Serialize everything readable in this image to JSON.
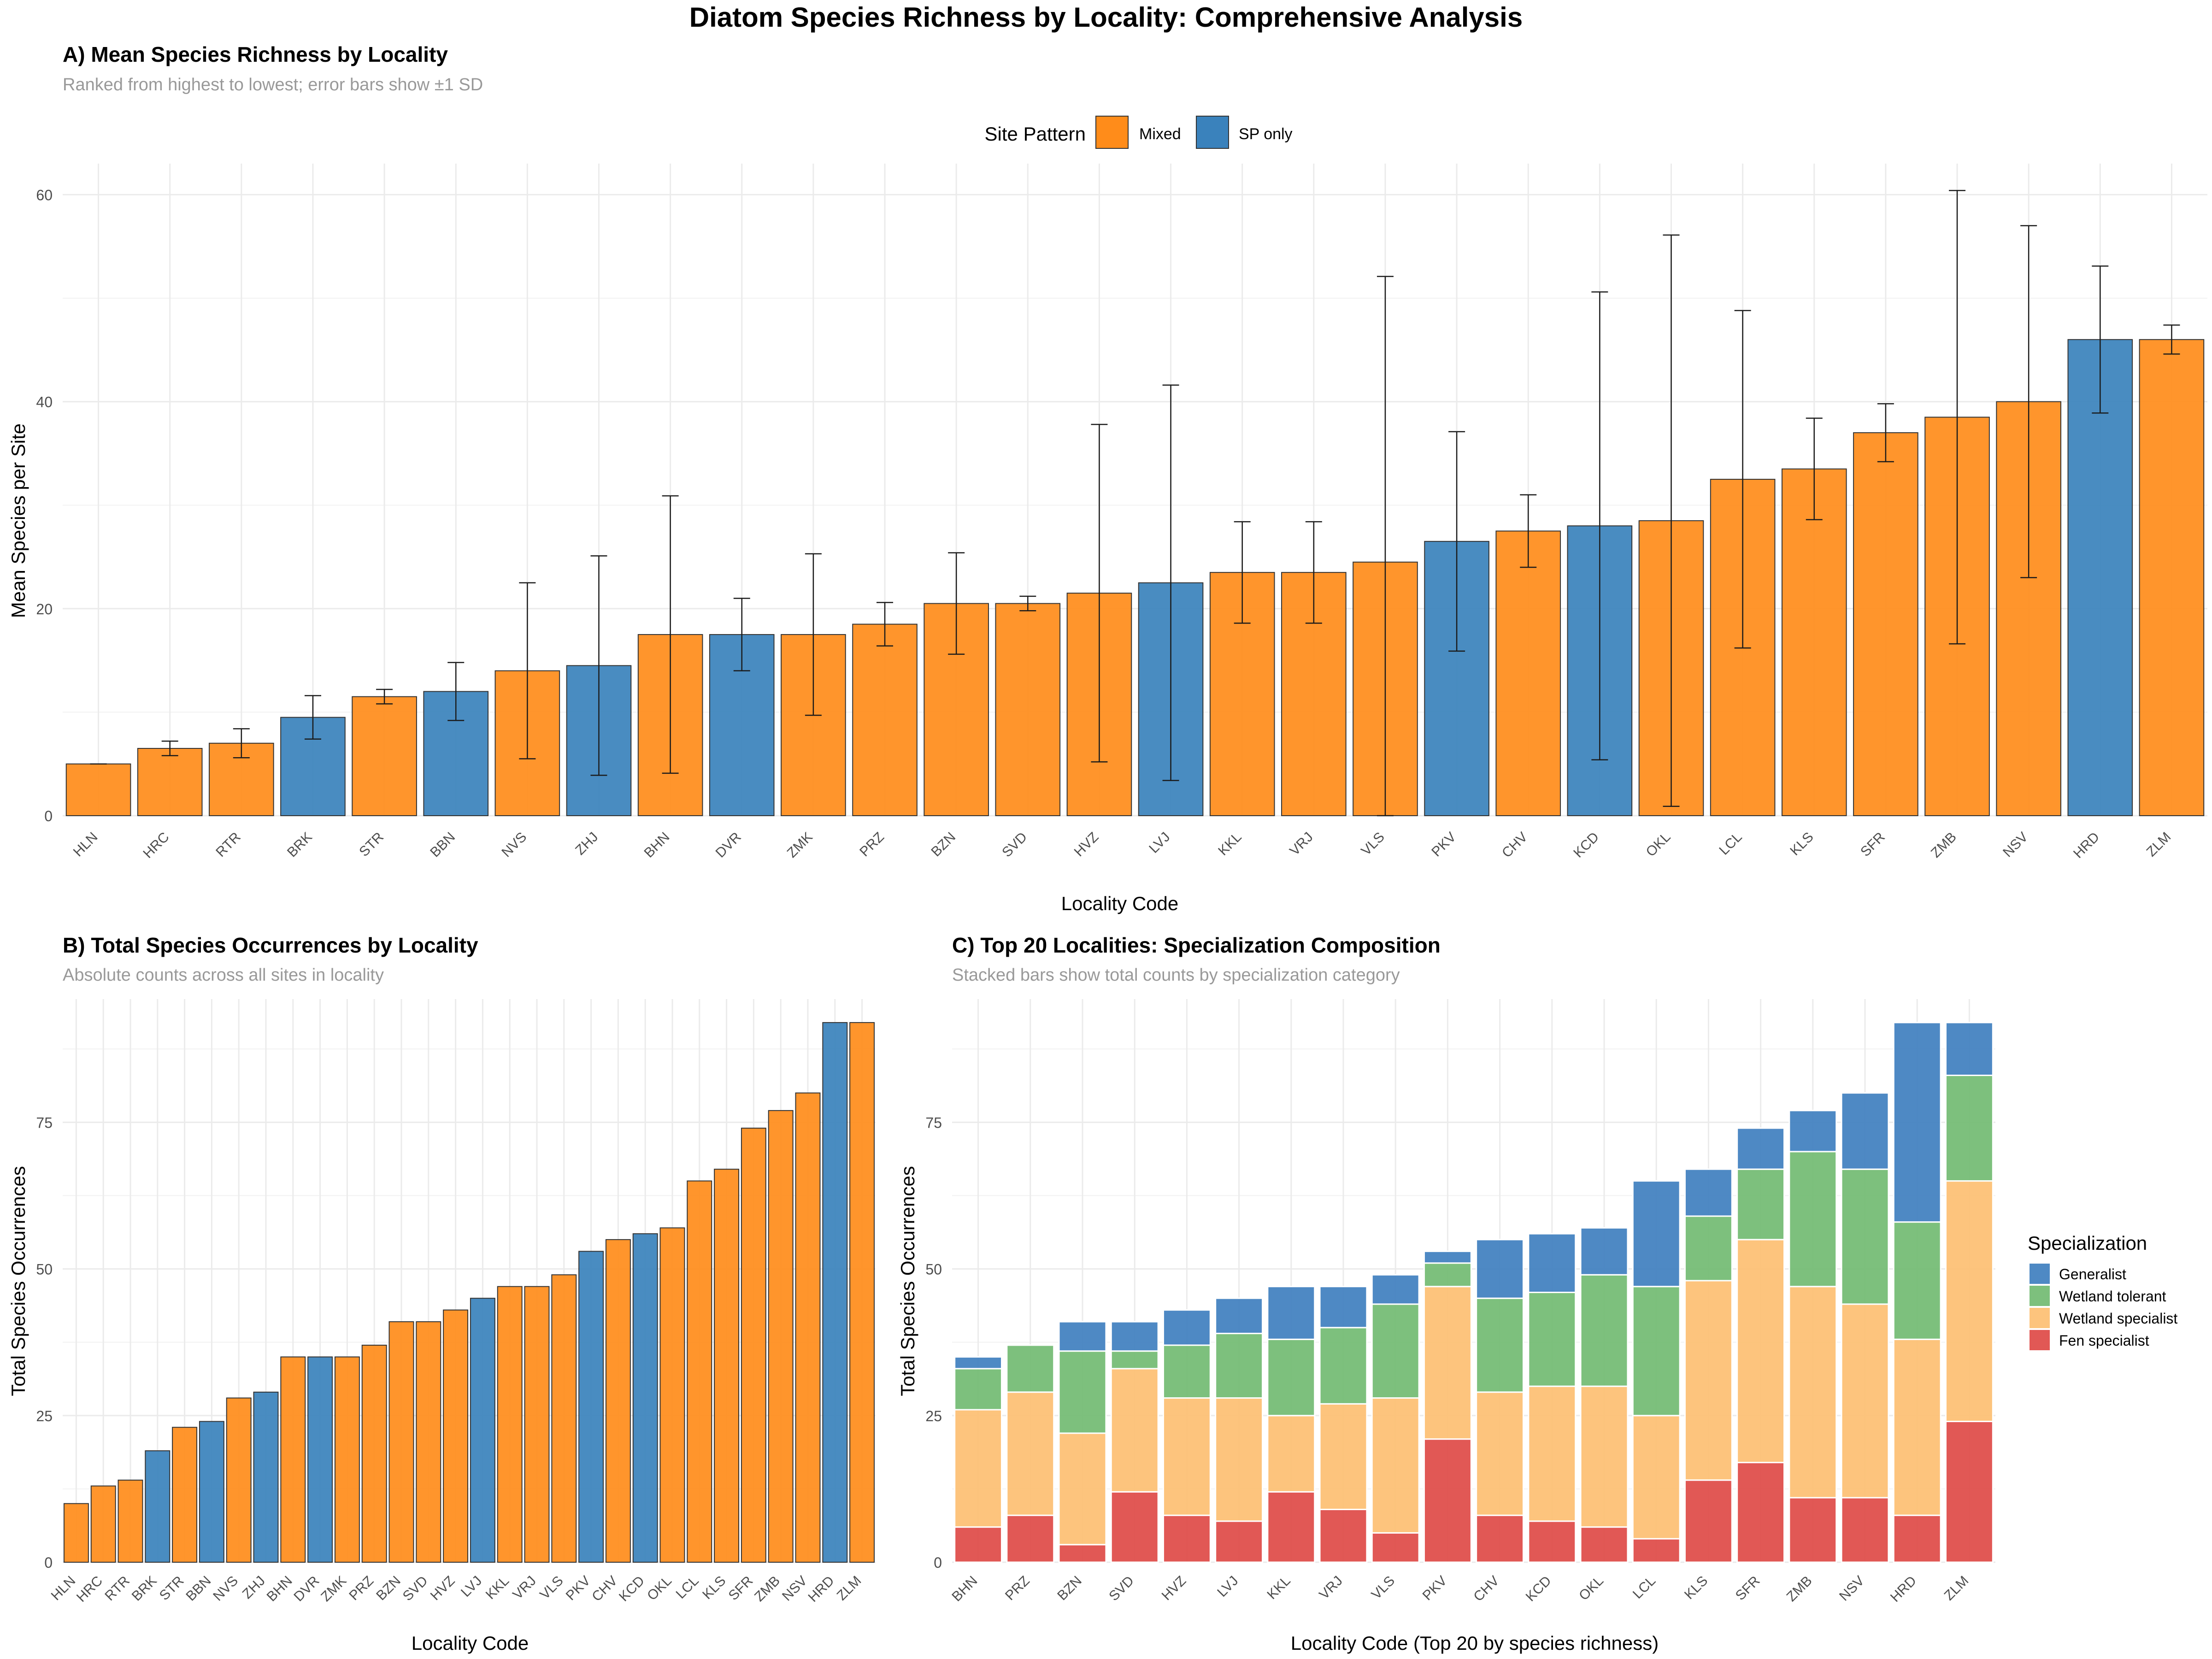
{
  "title": "Diatom Species Richness by Locality: Comprehensive Analysis",
  "colors": {
    "mixed": "#FF8C1A",
    "sp_only": "#3A82BC",
    "generalist": "#3F7FBF",
    "wetland_tolerant": "#72BB72",
    "wetland_specialist": "#FDBF72",
    "fen_specialist": "#DE4A47",
    "grid": "#EBEBEB"
  },
  "chart_data": [
    {
      "id": "A",
      "type": "bar",
      "title": "A) Mean Species Richness by Locality",
      "subtitle": "Ranked from highest to lowest; error bars show ±1 SD",
      "xlabel": "Locality Code",
      "ylabel": "Mean Species per Site",
      "ylim": [
        0,
        63
      ],
      "yticks": [
        0,
        20,
        40,
        60
      ],
      "grid": true,
      "legend": {
        "title": "Site Pattern",
        "position": "top",
        "entries": [
          {
            "key": "mixed",
            "label": "Mixed"
          },
          {
            "key": "sp_only",
            "label": "SP only"
          }
        ]
      },
      "categories": [
        "HLN",
        "HRC",
        "RTR",
        "BRK",
        "STR",
        "BBN",
        "NVS",
        "ZHJ",
        "BHN",
        "DVR",
        "ZMK",
        "PRZ",
        "BZN",
        "SVD",
        "HVZ",
        "LVJ",
        "KKL",
        "VRJ",
        "VLS",
        "PKV",
        "CHV",
        "KCD",
        "OKL",
        "LCL",
        "KLS",
        "SFR",
        "ZMB",
        "NSV",
        "HRD",
        "ZLM"
      ],
      "values": [
        5,
        6.5,
        7,
        9.5,
        11.5,
        12,
        14,
        14.5,
        17.5,
        17.5,
        17.5,
        18.5,
        20.5,
        20.5,
        21.5,
        22.5,
        23.5,
        23.5,
        24.5,
        26.5,
        27.5,
        28,
        28.5,
        32.5,
        33.5,
        37,
        38.5,
        40,
        46,
        46
      ],
      "sd": [
        0,
        0.7,
        1.4,
        2.1,
        0.7,
        2.8,
        8.5,
        10.6,
        13.4,
        3.5,
        7.8,
        2.1,
        4.9,
        0.7,
        16.3,
        19.1,
        4.9,
        4.9,
        27.6,
        10.6,
        3.5,
        22.6,
        27.6,
        16.3,
        4.9,
        2.8,
        21.9,
        17,
        7.1,
        1.4
      ],
      "pattern": [
        "mixed",
        "mixed",
        "mixed",
        "sp_only",
        "mixed",
        "sp_only",
        "mixed",
        "sp_only",
        "mixed",
        "sp_only",
        "mixed",
        "mixed",
        "mixed",
        "mixed",
        "mixed",
        "sp_only",
        "mixed",
        "mixed",
        "mixed",
        "sp_only",
        "mixed",
        "sp_only",
        "mixed",
        "mixed",
        "mixed",
        "mixed",
        "mixed",
        "mixed",
        "sp_only",
        "mixed"
      ]
    },
    {
      "id": "B",
      "type": "bar",
      "title": "B) Total Species Occurrences by Locality",
      "subtitle": "Absolute counts across all sites in locality",
      "xlabel": "Locality Code",
      "ylabel": "Total Species Occurrences",
      "ylim": [
        0,
        96
      ],
      "yticks": [
        0,
        25,
        50,
        75
      ],
      "grid": true,
      "categories": [
        "HLN",
        "HRC",
        "RTR",
        "BRK",
        "STR",
        "BBN",
        "NVS",
        "ZHJ",
        "BHN",
        "DVR",
        "ZMK",
        "PRZ",
        "BZN",
        "SVD",
        "HVZ",
        "LVJ",
        "KKL",
        "VRJ",
        "VLS",
        "PKV",
        "CHV",
        "KCD",
        "OKL",
        "LCL",
        "KLS",
        "SFR",
        "ZMB",
        "NSV",
        "HRD",
        "ZLM"
      ],
      "values": [
        10,
        13,
        14,
        19,
        23,
        24,
        28,
        29,
        35,
        35,
        35,
        37,
        41,
        41,
        43,
        45,
        47,
        47,
        49,
        53,
        55,
        56,
        57,
        65,
        67,
        74,
        77,
        80,
        92,
        92
      ],
      "pattern": [
        "mixed",
        "mixed",
        "mixed",
        "sp_only",
        "mixed",
        "sp_only",
        "mixed",
        "sp_only",
        "mixed",
        "sp_only",
        "mixed",
        "mixed",
        "mixed",
        "mixed",
        "mixed",
        "sp_only",
        "mixed",
        "mixed",
        "mixed",
        "sp_only",
        "mixed",
        "sp_only",
        "mixed",
        "mixed",
        "mixed",
        "mixed",
        "mixed",
        "mixed",
        "sp_only",
        "mixed"
      ]
    },
    {
      "id": "C",
      "type": "bar",
      "stacked": true,
      "title": "C) Top 20 Localities: Specialization Composition",
      "subtitle": "Stacked bars show total counts by specialization category",
      "xlabel": "Locality Code (Top 20 by species richness)",
      "ylabel": "Total Species Occurrences",
      "ylim": [
        0,
        96
      ],
      "yticks": [
        0,
        25,
        50,
        75
      ],
      "grid": true,
      "legend": {
        "title": "Specialization",
        "position": "right",
        "entries": [
          "Generalist",
          "Wetland tolerant",
          "Wetland specialist",
          "Fen specialist"
        ]
      },
      "categories": [
        "BHN",
        "PRZ",
        "BZN",
        "SVD",
        "HVZ",
        "LVJ",
        "KKL",
        "VRJ",
        "VLS",
        "PKV",
        "CHV",
        "KCD",
        "OKL",
        "LCL",
        "KLS",
        "SFR",
        "ZMB",
        "NSV",
        "HRD",
        "ZLM"
      ],
      "series": [
        {
          "name": "Fen specialist",
          "key": "fen_specialist",
          "values": [
            6,
            8,
            3,
            12,
            8,
            7,
            12,
            9,
            5,
            21,
            8,
            7,
            6,
            4,
            14,
            17,
            11,
            11,
            8,
            24
          ]
        },
        {
          "name": "Wetland specialist",
          "key": "wetland_specialist",
          "values": [
            20,
            21,
            19,
            21,
            20,
            21,
            13,
            18,
            23,
            26,
            21,
            23,
            24,
            21,
            34,
            38,
            36,
            33,
            30,
            41
          ]
        },
        {
          "name": "Wetland tolerant",
          "key": "wetland_tolerant",
          "values": [
            7,
            8,
            14,
            3,
            9,
            11,
            13,
            13,
            16,
            4,
            16,
            16,
            19,
            22,
            11,
            12,
            23,
            23,
            20,
            18
          ]
        },
        {
          "name": "Generalist",
          "key": "generalist",
          "values": [
            2,
            0,
            5,
            5,
            6,
            6,
            9,
            7,
            5,
            2,
            10,
            10,
            8,
            18,
            8,
            7,
            7,
            13,
            34,
            9
          ]
        }
      ]
    }
  ]
}
